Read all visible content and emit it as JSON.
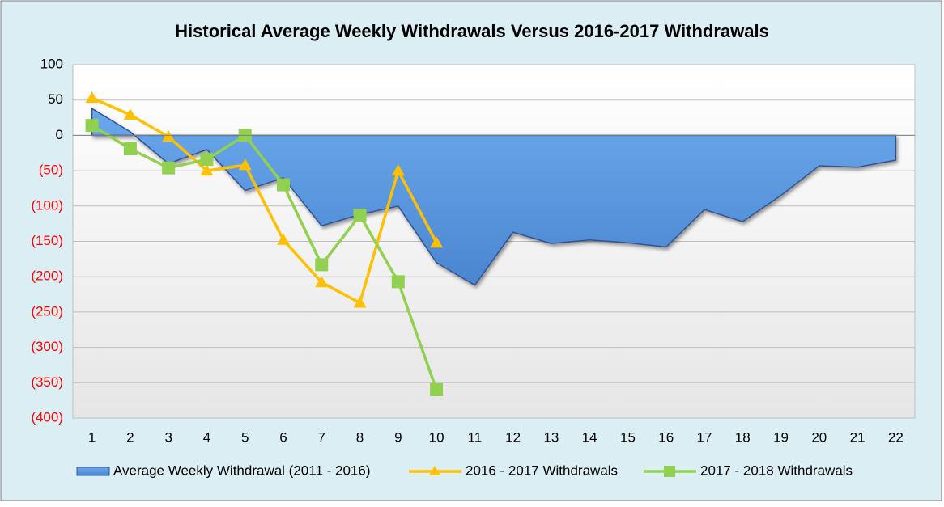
{
  "chart_data": {
    "type": "line",
    "title": "Historical Average Weekly Withdrawals Versus 2016-2017 Withdrawals",
    "categories": [
      "1",
      "2",
      "3",
      "4",
      "5",
      "6",
      "7",
      "8",
      "9",
      "10",
      "11",
      "12",
      "13",
      "14",
      "15",
      "16",
      "17",
      "18",
      "19",
      "20",
      "21",
      "22"
    ],
    "series": [
      {
        "name": "Average Weekly Withdrawal (2011 - 2016)",
        "kind": "area",
        "color": "#5b9be0",
        "values": [
          38,
          5,
          -40,
          -20,
          -78,
          -60,
          -128,
          -112,
          -100,
          -180,
          -212,
          -137,
          -153,
          -148,
          -152,
          -158,
          -105,
          -122,
          -85,
          -43,
          -45,
          -35
        ]
      },
      {
        "name": "2016 - 2017 Withdrawals",
        "kind": "line",
        "marker": "triangle",
        "color": "#ffc000",
        "values": [
          53,
          29,
          -2,
          -50,
          -42,
          -148,
          -208,
          -237,
          -50,
          -152,
          null,
          null,
          null,
          null,
          null,
          null,
          null,
          null,
          null,
          null,
          null,
          null
        ]
      },
      {
        "name": "2017 - 2018 Withdrawals",
        "kind": "line",
        "marker": "square",
        "color": "#92d050",
        "values": [
          14,
          -19,
          -46,
          -34,
          0,
          -70,
          -183,
          -113,
          -207,
          -360,
          null,
          null,
          null,
          null,
          null,
          null,
          null,
          null,
          null,
          null,
          null,
          null
        ]
      }
    ],
    "ylim": [
      -400,
      100
    ],
    "yticks": [
      100,
      50,
      0,
      {
        "value": -50,
        "label": "(50)"
      },
      {
        "value": -100,
        "label": "(100)"
      },
      {
        "value": -150,
        "label": "(150)"
      },
      {
        "value": -200,
        "label": "(200)"
      },
      {
        "value": -250,
        "label": "(250)"
      },
      {
        "value": -300,
        "label": "(300)"
      },
      {
        "value": -350,
        "label": "(350)"
      },
      {
        "value": -400,
        "label": "(400)"
      }
    ],
    "negative_tick_color": "#ff0000",
    "grid": true,
    "legend": "bottom"
  }
}
